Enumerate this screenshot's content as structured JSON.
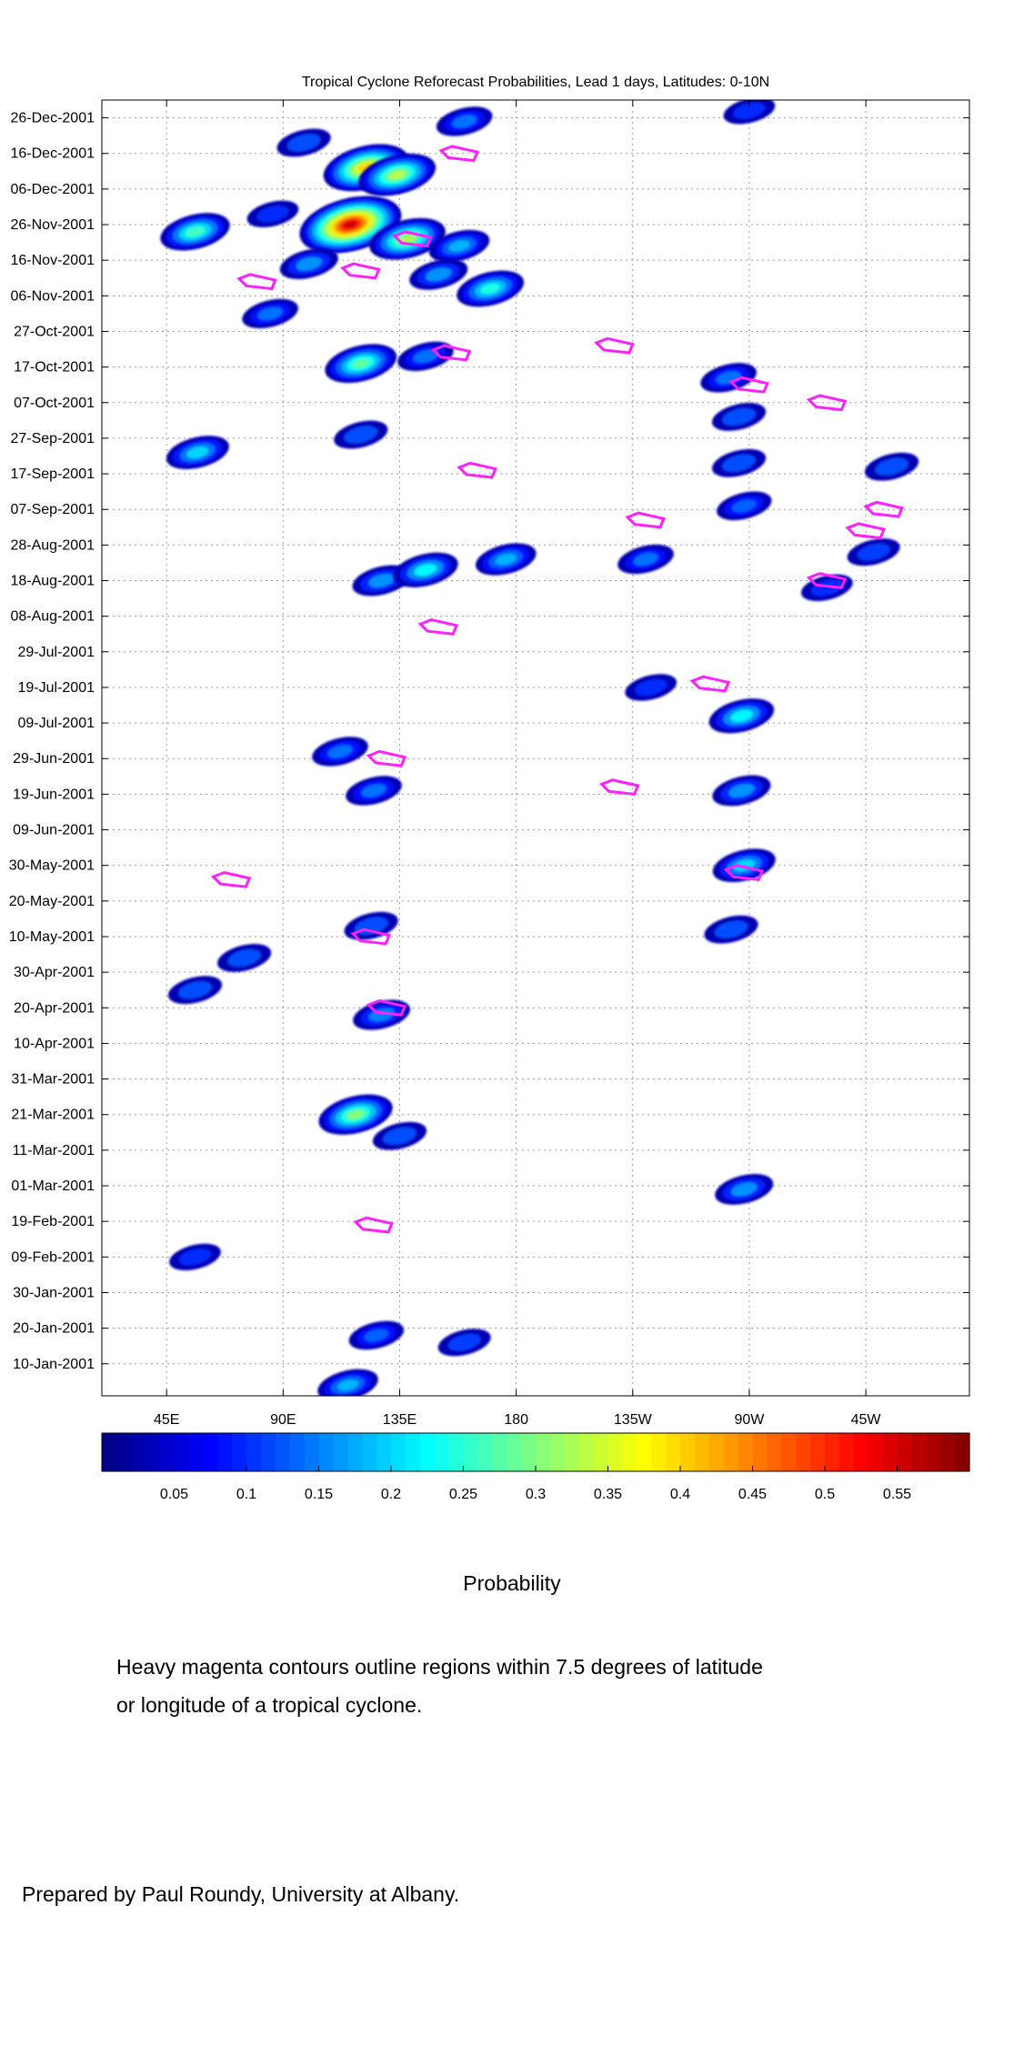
{
  "chart_data": {
    "type": "heatmap",
    "title": "Tropical Cyclone Reforecast Probabilities, Lead 1 days, Latitudes: 0-10N",
    "x_ticks": [
      "45E",
      "90E",
      "135E",
      "180",
      "135W",
      "90W",
      "45W"
    ],
    "x_tick_values": [
      45,
      90,
      135,
      180,
      225,
      270,
      315
    ],
    "xlim": [
      20,
      355
    ],
    "y_ticks": [
      "26-Dec-2001",
      "16-Dec-2001",
      "06-Dec-2001",
      "26-Nov-2001",
      "16-Nov-2001",
      "06-Nov-2001",
      "27-Oct-2001",
      "17-Oct-2001",
      "07-Oct-2001",
      "27-Sep-2001",
      "17-Sep-2001",
      "07-Sep-2001",
      "28-Aug-2001",
      "18-Aug-2001",
      "08-Aug-2001",
      "29-Jul-2001",
      "19-Jul-2001",
      "09-Jul-2001",
      "29-Jun-2001",
      "19-Jun-2001",
      "09-Jun-2001",
      "30-May-2001",
      "20-May-2001",
      "10-May-2001",
      "30-Apr-2001",
      "20-Apr-2001",
      "10-Apr-2001",
      "31-Mar-2001",
      "21-Mar-2001",
      "11-Mar-2001",
      "01-Mar-2001",
      "19-Feb-2001",
      "09-Feb-2001",
      "30-Jan-2001",
      "20-Jan-2001",
      "10-Jan-2001"
    ],
    "ylim": [
      "01-Jan-2001",
      "31-Dec-2001"
    ],
    "colorbar": {
      "label": "Probability",
      "tick_labels": [
        "0.05",
        "0.1",
        "0.15",
        "0.2",
        "0.25",
        "0.3",
        "0.35",
        "0.4",
        "0.45",
        "0.5",
        "0.55"
      ],
      "tick_values": [
        0.05,
        0.1,
        0.15,
        0.2,
        0.25,
        0.3,
        0.35,
        0.4,
        0.45,
        0.5,
        0.55
      ],
      "range": [
        0,
        0.6
      ]
    },
    "grid": true,
    "blobs": [
      {
        "lon": 122,
        "date": "2001-12-12",
        "p": 0.4
      },
      {
        "lon": 134,
        "date": "2001-12-10",
        "p": 0.33
      },
      {
        "lon": 98,
        "date": "2001-12-19",
        "p": 0.12
      },
      {
        "lon": 160,
        "date": "2001-12-25",
        "p": 0.14
      },
      {
        "lon": 270,
        "date": "2001-12-28",
        "p": 0.1
      },
      {
        "lon": 56,
        "date": "2001-11-24",
        "p": 0.26
      },
      {
        "lon": 86,
        "date": "2001-11-29",
        "p": 0.1
      },
      {
        "lon": 116,
        "date": "2001-11-26",
        "p": 0.55
      },
      {
        "lon": 138,
        "date": "2001-11-22",
        "p": 0.32
      },
      {
        "lon": 158,
        "date": "2001-11-20",
        "p": 0.18
      },
      {
        "lon": 100,
        "date": "2001-11-15",
        "p": 0.16
      },
      {
        "lon": 170,
        "date": "2001-11-08",
        "p": 0.24
      },
      {
        "lon": 150,
        "date": "2001-11-12",
        "p": 0.16
      },
      {
        "lon": 85,
        "date": "2001-11-01",
        "p": 0.14
      },
      {
        "lon": 120,
        "date": "2001-10-18",
        "p": 0.28
      },
      {
        "lon": 145,
        "date": "2001-10-20",
        "p": 0.14
      },
      {
        "lon": 262,
        "date": "2001-10-14",
        "p": 0.14
      },
      {
        "lon": 266,
        "date": "2001-10-03",
        "p": 0.12
      },
      {
        "lon": 120,
        "date": "2001-09-28",
        "p": 0.12
      },
      {
        "lon": 57,
        "date": "2001-09-23",
        "p": 0.2
      },
      {
        "lon": 266,
        "date": "2001-09-20",
        "p": 0.12
      },
      {
        "lon": 268,
        "date": "2001-09-08",
        "p": 0.13
      },
      {
        "lon": 325,
        "date": "2001-09-19",
        "p": 0.12
      },
      {
        "lon": 318,
        "date": "2001-08-26",
        "p": 0.11
      },
      {
        "lon": 128,
        "date": "2001-08-18",
        "p": 0.16
      },
      {
        "lon": 145,
        "date": "2001-08-21",
        "p": 0.22
      },
      {
        "lon": 176,
        "date": "2001-08-24",
        "p": 0.18
      },
      {
        "lon": 230,
        "date": "2001-08-24",
        "p": 0.14
      },
      {
        "lon": 300,
        "date": "2001-08-16",
        "p": 0.1
      },
      {
        "lon": 232,
        "date": "2001-07-19",
        "p": 0.1
      },
      {
        "lon": 267,
        "date": "2001-07-11",
        "p": 0.22
      },
      {
        "lon": 267,
        "date": "2001-06-20",
        "p": 0.16
      },
      {
        "lon": 268,
        "date": "2001-05-30",
        "p": 0.2
      },
      {
        "lon": 263,
        "date": "2001-05-12",
        "p": 0.12
      },
      {
        "lon": 112,
        "date": "2001-07-01",
        "p": 0.14
      },
      {
        "lon": 125,
        "date": "2001-06-20",
        "p": 0.14
      },
      {
        "lon": 124,
        "date": "2001-05-13",
        "p": 0.12
      },
      {
        "lon": 75,
        "date": "2001-05-04",
        "p": 0.12
      },
      {
        "lon": 56,
        "date": "2001-04-25",
        "p": 0.12
      },
      {
        "lon": 128,
        "date": "2001-04-18",
        "p": 0.15
      },
      {
        "lon": 118,
        "date": "2001-03-21",
        "p": 0.3
      },
      {
        "lon": 135,
        "date": "2001-03-15",
        "p": 0.12
      },
      {
        "lon": 268,
        "date": "2001-02-28",
        "p": 0.16
      },
      {
        "lon": 126,
        "date": "2001-01-18",
        "p": 0.13
      },
      {
        "lon": 160,
        "date": "2001-01-16",
        "p": 0.11
      },
      {
        "lon": 115,
        "date": "2001-01-04",
        "p": 0.18
      },
      {
        "lon": 56,
        "date": "2001-02-09",
        "p": 0.1
      }
    ],
    "magenta_contour_areas": [
      {
        "lon": 158,
        "date": "2001-12-16"
      },
      {
        "lon": 120,
        "date": "2001-11-13"
      },
      {
        "lon": 140,
        "date": "2001-11-22"
      },
      {
        "lon": 80,
        "date": "2001-11-10"
      },
      {
        "lon": 155,
        "date": "2001-10-21"
      },
      {
        "lon": 218,
        "date": "2001-10-23"
      },
      {
        "lon": 270,
        "date": "2001-10-12"
      },
      {
        "lon": 300,
        "date": "2001-10-07"
      },
      {
        "lon": 165,
        "date": "2001-09-18"
      },
      {
        "lon": 322,
        "date": "2001-09-07"
      },
      {
        "lon": 230,
        "date": "2001-09-04"
      },
      {
        "lon": 315,
        "date": "2001-09-01"
      },
      {
        "lon": 300,
        "date": "2001-08-18"
      },
      {
        "lon": 150,
        "date": "2001-08-05"
      },
      {
        "lon": 255,
        "date": "2001-07-20"
      },
      {
        "lon": 130,
        "date": "2001-06-29"
      },
      {
        "lon": 220,
        "date": "2001-06-21"
      },
      {
        "lon": 268,
        "date": "2001-05-28"
      },
      {
        "lon": 70,
        "date": "2001-05-26"
      },
      {
        "lon": 124,
        "date": "2001-05-10"
      },
      {
        "lon": 130,
        "date": "2001-04-20"
      },
      {
        "lon": 125,
        "date": "2001-02-18"
      }
    ]
  },
  "note_lines": [
    "Heavy magenta contours outline regions within 7.5 degrees of latitude",
    "or longitude of a tropical cyclone."
  ],
  "credit": "Prepared by Paul Roundy, University at Albany."
}
